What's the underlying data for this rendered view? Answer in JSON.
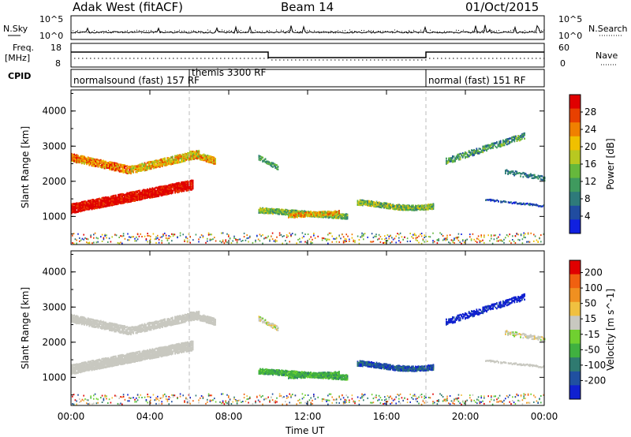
{
  "header": {
    "radar": "Adak West (fitACF)",
    "beam": "Beam 14",
    "date": "01/Oct/2015"
  },
  "top_panels": {
    "nsky_label": "N.Sky",
    "nsearch_label": "N.Search",
    "count_ticks": [
      "10^5",
      "10^0"
    ],
    "freq_label_line1": "Freq.",
    "freq_label_line2": "[MHz]",
    "freq_ticks": [
      "18",
      "8"
    ],
    "nave_label": "Nave",
    "nave_ticks": [
      "60",
      "0"
    ],
    "cpid_label": "CPID",
    "modes": [
      {
        "name": "normalsound (fast) 157 RF",
        "start_hour": 0
      },
      {
        "name": "themis 3300 RF",
        "start_hour": 6
      },
      {
        "name": "normal (fast) 151 RF",
        "start_hour": 18
      }
    ]
  },
  "colors": {
    "power": [
      "#1020e0",
      "#204ca0",
      "#2e7a7a",
      "#3f9a5e",
      "#66b83c",
      "#b8c820",
      "#f0c000",
      "#f08000",
      "#e84000",
      "#e00000"
    ],
    "velocity": [
      "#1020d0",
      "#2050a0",
      "#2f7a70",
      "#40b040",
      "#70d030",
      "#c8c8c0",
      "#f0c040",
      "#f09020",
      "#f06010",
      "#e00000"
    ]
  },
  "chart_data": [
    {
      "type": "heatmap",
      "title": "Power",
      "ylabel": "Slant Range [km]",
      "ylim": [
        200,
        4600
      ],
      "yticks": [
        1000,
        2000,
        3000,
        4000
      ],
      "xlim": [
        0,
        24
      ],
      "colorbar": {
        "label": "Power [dB]",
        "ticks": [
          4,
          8,
          12,
          16,
          20,
          24,
          28
        ],
        "range": [
          0,
          32
        ]
      },
      "grid": false
    },
    {
      "type": "heatmap",
      "title": "Velocity",
      "ylabel": "Slant Range [km]",
      "ylim": [
        200,
        4600
      ],
      "yticks": [
        1000,
        2000,
        3000,
        4000
      ],
      "xlim": [
        0,
        24
      ],
      "colorbar": {
        "label": "Velocity [m s^-1]",
        "ticks": [
          "200",
          "100",
          "50",
          "15",
          "-15",
          "-50",
          "-100",
          "-200"
        ]
      },
      "grid": false
    }
  ],
  "x_axis": {
    "label": "Time UT",
    "ticks": [
      "00:00",
      "04:00",
      "08:00",
      "12:00",
      "16:00",
      "20:00",
      "00:00"
    ],
    "hours": [
      0,
      4,
      8,
      12,
      16,
      20,
      24
    ]
  }
}
